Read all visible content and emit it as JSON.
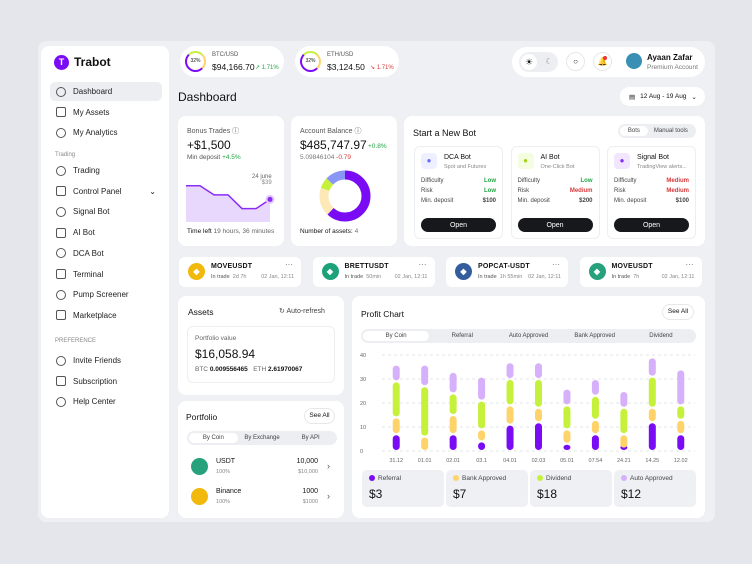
{
  "app": {
    "name": "Trabot",
    "accent": "#7a0cf5"
  },
  "sidebar": {
    "items": [
      {
        "label": "Dashboard",
        "icon": "grid-icon",
        "active": true
      },
      {
        "label": "My Assets",
        "icon": "coin-icon"
      },
      {
        "label": "My Analytics",
        "icon": "chart-icon"
      }
    ],
    "trading_header": "Trading",
    "trading_items": [
      {
        "label": "Trading",
        "icon": "bank-icon"
      },
      {
        "label": "Control Panel",
        "icon": "compass-icon"
      },
      {
        "label": "Signal Bot",
        "icon": "bars-icon"
      },
      {
        "label": "AI Bot",
        "icon": "ai-icon"
      },
      {
        "label": "DCA Bot",
        "icon": "bot-icon"
      },
      {
        "label": "Terminal",
        "icon": "terminal-icon"
      },
      {
        "label": "Pump Screener",
        "icon": "screener-icon"
      },
      {
        "label": "Marketplace",
        "icon": "cart-icon"
      }
    ],
    "preference_header": "PREFERENCE",
    "preference_items": [
      {
        "label": "Invite Friends",
        "icon": "users-icon"
      },
      {
        "label": "Subscription",
        "icon": "wallet-icon"
      },
      {
        "label": "Help Center",
        "icon": "help-icon"
      }
    ]
  },
  "tickers": [
    {
      "pair": "BTC/USD",
      "pct": "32%",
      "price": "$94,166.70",
      "change": "1.71%",
      "dir": "up"
    },
    {
      "pair": "ETH/USD",
      "pct": "32%",
      "price": "$3,124.50",
      "change": "1.71%",
      "dir": "down"
    }
  ],
  "user": {
    "name": "Ayaan Zafar",
    "plan": "Premium Account"
  },
  "page_title": "Dashboard",
  "date_range": "12 Aug - 19 Aug",
  "bonus": {
    "title": "Bonus Trades",
    "value": "+$1,500",
    "sub": "Min deposit",
    "sub_change": "+4.5%",
    "tip_date": "24 june",
    "tip_value": "$39",
    "time_left_label": "Time left",
    "time_left": "19 hours, 36 minutes",
    "series": [
      30,
      30,
      22,
      22,
      10,
      10,
      18
    ]
  },
  "balance": {
    "title": "Account Balance",
    "value": "$485,747.97",
    "change": "+0.8%",
    "sub": "5.09846104",
    "sub_change": "-0.79",
    "assets_label": "Number of assets:",
    "assets": "4",
    "donut": [
      {
        "value": 62,
        "color": "#7a0cf5"
      },
      {
        "value": 18,
        "color": "#fde8b8"
      },
      {
        "value": 7,
        "color": "#c6f13a"
      },
      {
        "value": 13,
        "color": "#8a96f5"
      }
    ]
  },
  "new_bot": {
    "title": "Start a New Bot",
    "tabs": [
      "Bots",
      "Manual tools"
    ],
    "labels": {
      "difficulty": "Difficulty",
      "risk": "Risk",
      "deposit": "Min. deposit",
      "open": "Open"
    },
    "bots": [
      {
        "name": "DCA Bot",
        "desc": "Spot and Futures",
        "difficulty": "Low",
        "risk": "Low",
        "deposit": "$100",
        "icon": "dca-icon"
      },
      {
        "name": "AI Bot",
        "desc": "One-Click Bot",
        "difficulty": "Low",
        "risk": "Medium",
        "deposit": "$200",
        "icon": "ai-icon"
      },
      {
        "name": "Signal Bot",
        "desc": "TradingView alerts...",
        "difficulty": "Medium",
        "risk": "Medium",
        "deposit": "$100",
        "icon": "signal-icon"
      }
    ]
  },
  "trades": [
    {
      "pair": "MOVEUSDT",
      "status": "In trade",
      "duration": "2d 7h",
      "date": "02 Jan, 12:11",
      "color": "#f0b90b",
      "icon": "bnb-icon"
    },
    {
      "pair": "BRETTUSDT",
      "status": "In trade",
      "duration": "50min",
      "date": "02 Jan, 12:11",
      "color": "#1ba27a",
      "icon": "kucoin-icon"
    },
    {
      "pair": "POPCAT-USDT",
      "status": "In trade",
      "duration": "1h 55min",
      "date": "02 Jan, 12:11",
      "color": "#345d9d",
      "icon": "litecoin-icon"
    },
    {
      "pair": "MOVEUSDT",
      "status": "In trade",
      "duration": "7h",
      "date": "02 Jan, 12:11",
      "color": "#26a17b",
      "icon": "tether-icon"
    }
  ],
  "assets": {
    "title": "Assets",
    "refresh": "Auto-refresh",
    "portfolio_label": "Portfolio value",
    "portfolio_value": "$16,058.94",
    "btc_label": "BTC",
    "btc": "0.009556465",
    "eth_label": "ETH",
    "eth": "2.61970067"
  },
  "portfolio": {
    "title": "Portfolio",
    "see_all": "See All",
    "tabs": [
      "By Coin",
      "By Exchange",
      "By API"
    ],
    "items": [
      {
        "name": "USDT",
        "pct": "100%",
        "amount": "10,000",
        "usd": "$10,000",
        "color": "#26a17b"
      },
      {
        "name": "Binance",
        "pct": "100%",
        "amount": "1000",
        "usd": "$1000",
        "color": "#f0b90b"
      }
    ]
  },
  "profit": {
    "title": "Profit Chart",
    "see_all": "See All",
    "tabs": [
      "By Coin",
      "Referral",
      "Auto Approved",
      "Bank Approved",
      "Dividend"
    ],
    "totals": [
      {
        "name": "Referral",
        "value": "$3"
      },
      {
        "name": "Bank Approved",
        "value": "$7"
      },
      {
        "name": "Dividend",
        "value": "$18"
      },
      {
        "name": "Auto Approved",
        "value": "$12"
      }
    ]
  },
  "chart_data": {
    "type": "bar",
    "stacked": true,
    "ylim": [
      0,
      40
    ],
    "yticks": [
      "0",
      "10",
      "20",
      "30",
      "40"
    ],
    "grid": true,
    "categories": [
      "31.12",
      "01.01",
      "02.01",
      "03.1",
      "04.01",
      "02.03",
      "05.01",
      "07.54",
      "24.21",
      "14.25",
      "12.02"
    ],
    "series": [
      {
        "name": "Referral",
        "color": "#7a0cf5",
        "values": [
          7,
          0,
          7,
          4,
          11,
          12,
          3,
          7,
          1,
          12,
          7
        ]
      },
      {
        "name": "Bank Approved",
        "color": "#fdd36a",
        "values": [
          7,
          6,
          8,
          5,
          8,
          6,
          6,
          6,
          6,
          6,
          6
        ]
      },
      {
        "name": "Dividend",
        "color": "#c6f13a",
        "values": [
          15,
          21,
          9,
          12,
          11,
          12,
          10,
          10,
          11,
          13,
          6
        ]
      },
      {
        "name": "Auto Approved",
        "color": "#d6b0fa",
        "values": [
          7,
          9,
          9,
          10,
          7,
          7,
          7,
          7,
          7,
          8,
          15
        ]
      }
    ]
  }
}
